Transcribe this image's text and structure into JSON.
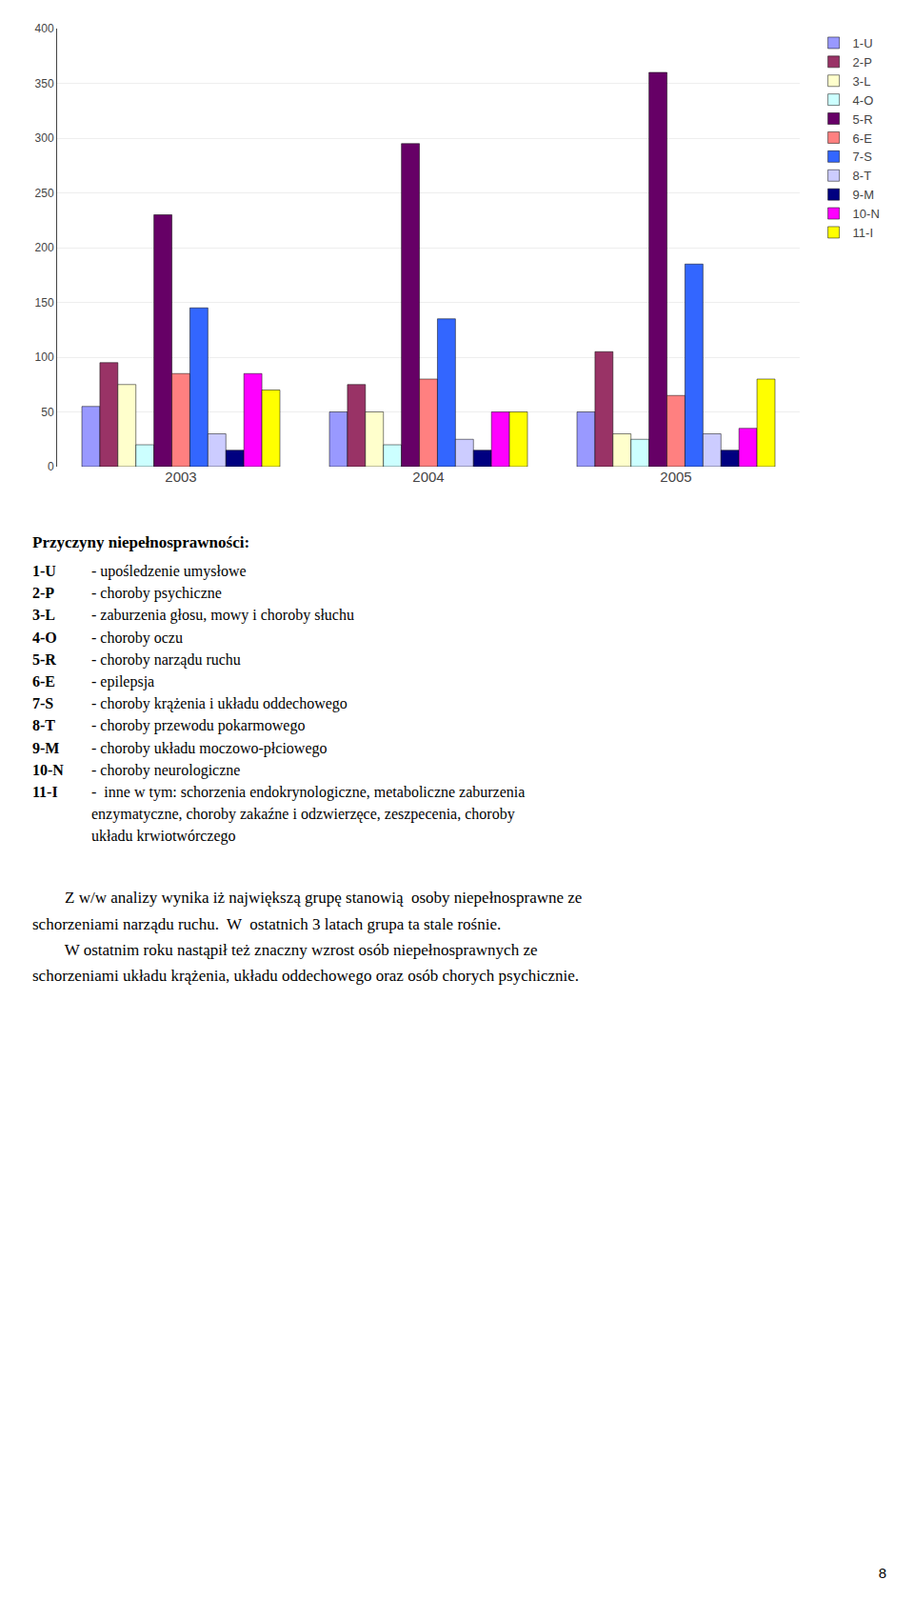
{
  "chart_data": {
    "type": "bar",
    "categories": [
      "2003",
      "2004",
      "2005"
    ],
    "series": [
      {
        "name": "1-U",
        "color": "#9999FF",
        "values": [
          55,
          50,
          50
        ]
      },
      {
        "name": "2-P",
        "color": "#993366",
        "values": [
          95,
          75,
          105
        ]
      },
      {
        "name": "3-L",
        "color": "#FFFFCC",
        "values": [
          75,
          50,
          30
        ]
      },
      {
        "name": "4-O",
        "color": "#CCFFFF",
        "values": [
          20,
          20,
          25
        ]
      },
      {
        "name": "5-R",
        "color": "#660066",
        "values": [
          230,
          295,
          360
        ]
      },
      {
        "name": "6-E",
        "color": "#FF8080",
        "values": [
          85,
          80,
          65
        ]
      },
      {
        "name": "7-S",
        "color": "#3366FF",
        "values": [
          145,
          135,
          185
        ]
      },
      {
        "name": "8-T",
        "color": "#CCCCFF",
        "values": [
          30,
          25,
          30
        ]
      },
      {
        "name": "9-M",
        "color": "#000080",
        "values": [
          15,
          15,
          15
        ]
      },
      {
        "name": "10-N",
        "color": "#FF00FF",
        "values": [
          85,
          50,
          35
        ]
      },
      {
        "name": "11-I",
        "color": "#FFFF00",
        "values": [
          70,
          50,
          80
        ]
      }
    ],
    "ylim": [
      0,
      400
    ],
    "yticks": [
      0,
      50,
      100,
      150,
      200,
      250,
      300,
      350,
      400
    ],
    "grid": true,
    "legend": "upper right",
    "annotations": [
      [
        "Przyczyny niepełnosprawności:",
        [
          "1-U",
          "- upośledzenie umysłowe"
        ],
        [
          "2-P",
          "- choroby psychiczne"
        ],
        [
          "3-L",
          "- zaburzenia głosu, mowy i choroby słuchu"
        ],
        [
          "4-O",
          "- choroby oczu"
        ],
        [
          "5-R",
          "- choroby narządu ruchu"
        ],
        [
          "6-E",
          "- epilepsja"
        ],
        [
          "7-S",
          "- choroby krążenia i układu oddechowego"
        ],
        [
          "8-T",
          "- choroby przewodu pokarmowego"
        ],
        [
          "9-M",
          "- choroby układu moczowo-płciowego"
        ],
        [
          "10-N",
          "- choroby neurologiczne"
        ],
        [
          "11-I",
          "-  inne w tym: schorzenia endokrynologiczne, metaboliczne zaburzenia"
        ],
        "enzymatyczne, choroby zakaźne i odzwierzęce, zeszpecenia, choroby",
        "układu krwiotwórczego"
      ],
      [
        "        Z w/w analizy wynika iż największą grupę stanowią  osoby niepełnosprawne ze",
        "schorzeniami narządu ruchu.  W  ostatnich 3 latach grupa ta stale rośnie.",
        "        W ostatnim roku nastąpił też znaczny wzrost osób niepełnosprawnych ze",
        "schorzeniami układu krążenia, układu oddechowego oraz osób chorych psychicznie."
      ],
      [
        "8"
      ]
    ]
  }
}
